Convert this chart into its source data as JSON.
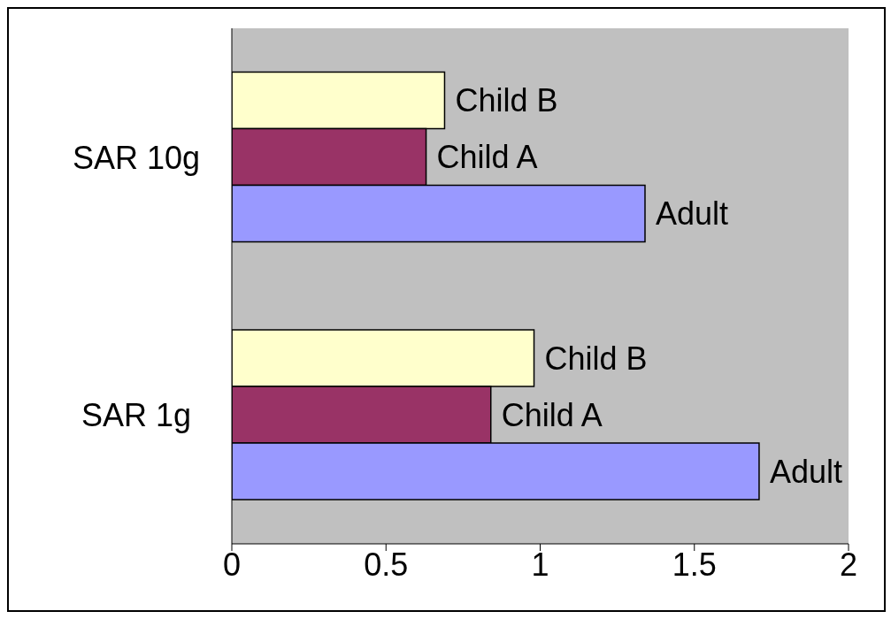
{
  "chart_data": {
    "type": "bar",
    "orientation": "horizontal",
    "categories": [
      "SAR 10g",
      "SAR 1g"
    ],
    "series": [
      {
        "name": "Child B",
        "color": "#ffffcc",
        "values": [
          0.69,
          0.98
        ]
      },
      {
        "name": "Child A",
        "color": "#993366",
        "values": [
          0.63,
          0.84
        ]
      },
      {
        "name": "Adult",
        "color": "#9999ff",
        "values": [
          1.34,
          1.71
        ]
      }
    ],
    "xlim": [
      0,
      2
    ],
    "xticks": [
      0,
      0.5,
      1,
      1.5,
      2
    ],
    "grid": false,
    "legend": false
  }
}
